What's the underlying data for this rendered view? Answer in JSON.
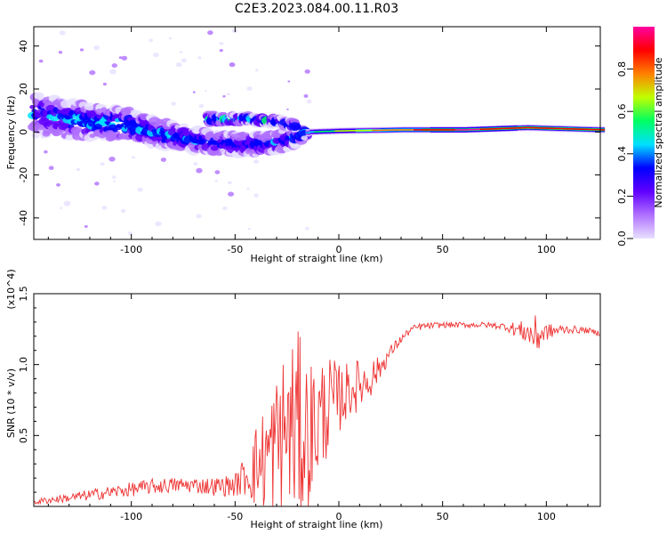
{
  "figure": {
    "title": "C2E3.2023.084.00.11.R03"
  },
  "chart_data": [
    {
      "type": "heatmap",
      "xlabel": "Height of straight line (km)",
      "ylabel": "Frequency (Hz)",
      "xlim": [
        -147,
        126
      ],
      "ylim": [
        -50,
        49
      ],
      "xticks": [
        -100,
        -50,
        0,
        50,
        100
      ],
      "yticks": [
        -40,
        -20,
        0,
        20,
        40
      ],
      "xtick_labels": [
        "-100",
        "-50",
        "0",
        "50",
        "100"
      ],
      "ytick_labels": [
        "-40",
        "-20",
        "0",
        "20",
        "40"
      ],
      "colorbar": {
        "label": "Normalized spectral amplitude",
        "range": [
          0,
          1
        ],
        "ticks": [
          0.0,
          0.2,
          0.4,
          0.6,
          0.8
        ],
        "tick_labels": [
          "0.0",
          "0.2",
          "0.4",
          "0.6",
          "0.8"
        ],
        "colormap": [
          "#e8e0ff",
          "#b070ff",
          "#6000ff",
          "#0000ff",
          "#00e0ff",
          "#00ff60",
          "#c0ff00",
          "#ff8000",
          "#ff0000",
          "#ff00a0"
        ]
      },
      "ridge": [
        {
          "x": -147,
          "center": 8,
          "spread": 10,
          "amp": 0.35
        },
        {
          "x": -120,
          "center": 5,
          "spread": 8,
          "amp": 0.45
        },
        {
          "x": -100,
          "center": 3,
          "spread": 7,
          "amp": 0.45
        },
        {
          "x": -80,
          "center": -2,
          "spread": 6,
          "amp": 0.4
        },
        {
          "x": -60,
          "center": -5,
          "spread": 5,
          "amp": 0.35
        },
        {
          "x": -40,
          "center": -6,
          "spread": 5,
          "amp": 0.35
        },
        {
          "x": -25,
          "center": -4,
          "spread": 5,
          "amp": 0.35
        },
        {
          "x": -15,
          "center": 0,
          "spread": 2,
          "amp": 0.45
        },
        {
          "x": 0,
          "center": 0.5,
          "spread": 1.5,
          "amp": 0.6
        },
        {
          "x": 30,
          "center": 1,
          "spread": 1.5,
          "amp": 0.75
        },
        {
          "x": 60,
          "center": 1,
          "spread": 1.5,
          "amp": 0.9
        },
        {
          "x": 90,
          "center": 2,
          "spread": 2,
          "amp": 0.8
        },
        {
          "x": 126,
          "center": 1,
          "spread": 1.5,
          "amp": 0.8
        }
      ],
      "branch": [
        {
          "x": -63,
          "center": 6,
          "spread": 2,
          "amp": 0.55
        },
        {
          "x": -45,
          "center": 6,
          "spread": 2,
          "amp": 0.5
        },
        {
          "x": -30,
          "center": 5,
          "spread": 2,
          "amp": 0.45
        },
        {
          "x": -20,
          "center": 3,
          "spread": 2,
          "amp": 0.4
        }
      ]
    },
    {
      "type": "line",
      "xlabel": "Height of straight line (km)",
      "ylabel": "SNR (10 * v/v)",
      "y_scale_label": "(x10^4)",
      "xlim": [
        -147,
        126
      ],
      "ylim": [
        0,
        15000
      ],
      "xticks": [
        -100,
        -50,
        0,
        50,
        100
      ],
      "yticks": [
        5000,
        10000,
        15000
      ],
      "xtick_labels": [
        "-100",
        "-50",
        "0",
        "50",
        "100"
      ],
      "ytick_labels": [
        "0.5",
        "1.0",
        "1.5"
      ],
      "series": [
        {
          "color": "#ee3333",
          "x": [
            -147,
            -140,
            -130,
            -120,
            -110,
            -100,
            -90,
            -80,
            -70,
            -60,
            -50,
            -45,
            -40,
            -35,
            -30,
            -25,
            -20,
            -15,
            -10,
            -5,
            0,
            5,
            10,
            15,
            20,
            25,
            30,
            35,
            40,
            50,
            60,
            70,
            80,
            90,
            95,
            100,
            110,
            120,
            126
          ],
          "values": [
            300,
            450,
            600,
            800,
            1000,
            1200,
            1400,
            1500,
            1500,
            1400,
            1500,
            2200,
            2800,
            3500,
            4500,
            5500,
            5500,
            5000,
            6000,
            7200,
            7600,
            8200,
            8600,
            9000,
            9800,
            10900,
            11800,
            12500,
            12700,
            12800,
            12800,
            12800,
            12700,
            12300,
            12000,
            12300,
            12500,
            12400,
            12200
          ],
          "noise": [
            200,
            250,
            300,
            400,
            450,
            500,
            550,
            550,
            550,
            650,
            800,
            1500,
            3000,
            4000,
            5000,
            6000,
            7000,
            5500,
            4500,
            3500,
            2500,
            2000,
            1800,
            1400,
            800,
            500,
            300,
            250,
            250,
            200,
            200,
            200,
            250,
            800,
            1500,
            600,
            300,
            200,
            200
          ]
        }
      ]
    }
  ]
}
